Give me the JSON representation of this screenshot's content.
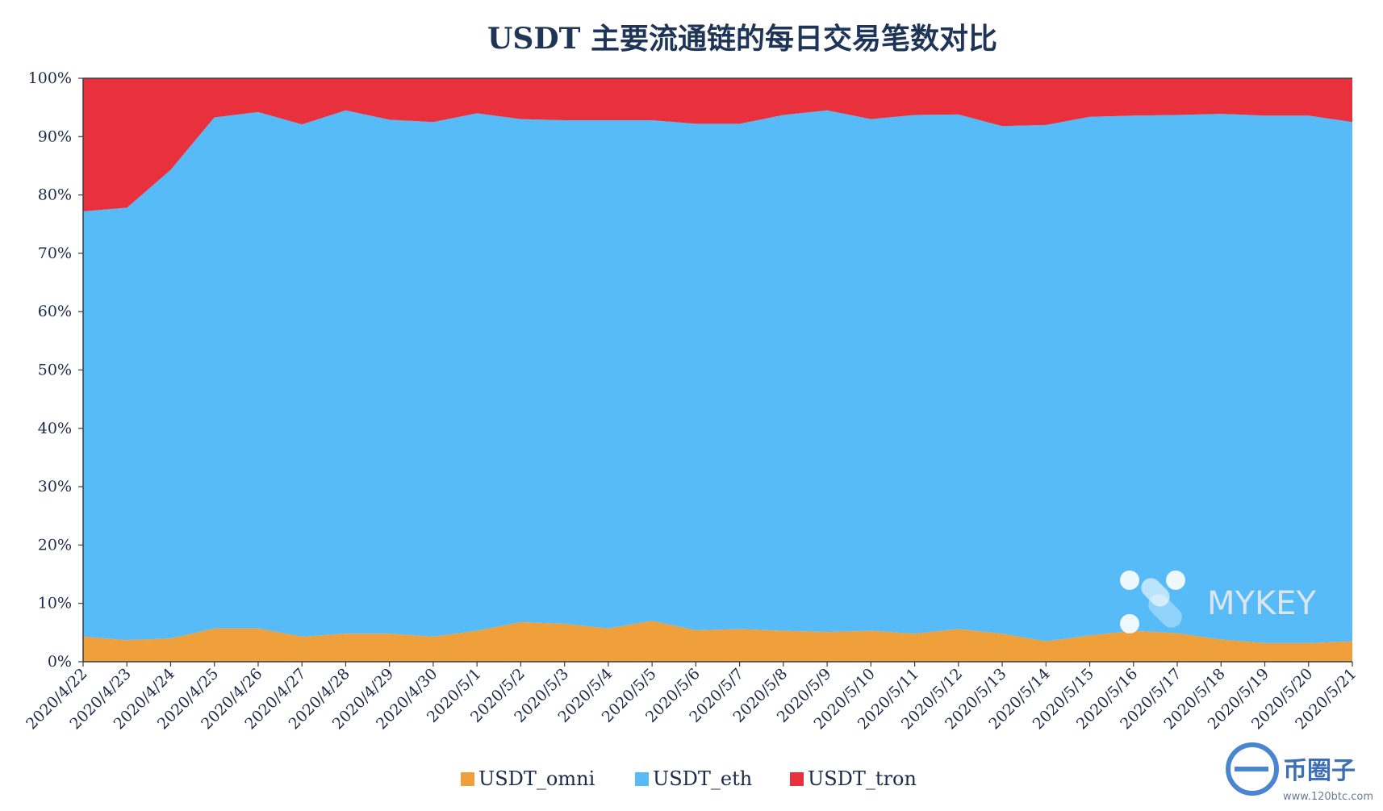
{
  "chart_data": {
    "type": "area",
    "stacked": "percent",
    "title": "USDT 主要流通链的每日交易笔数对比",
    "xlabel": "",
    "ylabel": "",
    "ylim": [
      0,
      100
    ],
    "y_ticks": [
      "0%",
      "10%",
      "20%",
      "30%",
      "40%",
      "50%",
      "60%",
      "70%",
      "80%",
      "90%",
      "100%"
    ],
    "categories": [
      "2020/4/22",
      "2020/4/23",
      "2020/4/24",
      "2020/4/25",
      "2020/4/26",
      "2020/4/27",
      "2020/4/28",
      "2020/4/29",
      "2020/4/30",
      "2020/5/1",
      "2020/5/2",
      "2020/5/3",
      "2020/5/4",
      "2020/5/5",
      "2020/5/6",
      "2020/5/7",
      "2020/5/8",
      "2020/5/9",
      "2020/5/10",
      "2020/5/11",
      "2020/5/12",
      "2020/5/13",
      "2020/5/14",
      "2020/5/15",
      "2020/5/16",
      "2020/5/17",
      "2020/5/18",
      "2020/5/19",
      "2020/5/20",
      "2020/5/21"
    ],
    "series": [
      {
        "name": "USDT_omni",
        "color": "#f0a03a",
        "values": [
          4.3,
          3.7,
          4.0,
          5.7,
          5.7,
          4.3,
          4.8,
          4.8,
          4.3,
          5.3,
          6.8,
          6.5,
          5.7,
          7.0,
          5.4,
          5.6,
          5.3,
          5.1,
          5.3,
          4.8,
          5.6,
          4.8,
          3.5,
          4.5,
          5.3,
          4.9,
          3.8,
          3.2,
          3.2,
          3.5
        ]
      },
      {
        "name": "USDT_eth",
        "color": "#56bbf7",
        "values": [
          72.9,
          74.1,
          80.3,
          87.6,
          88.5,
          87.8,
          89.7,
          88.1,
          88.2,
          88.7,
          86.2,
          86.3,
          87.1,
          85.8,
          86.8,
          86.6,
          88.4,
          89.4,
          87.7,
          88.9,
          88.2,
          87.0,
          88.5,
          88.9,
          88.3,
          88.8,
          90.1,
          90.4,
          90.4,
          89.0
        ]
      },
      {
        "name": "USDT_tron",
        "color": "#e8313c",
        "values": [
          22.8,
          22.2,
          15.7,
          6.7,
          5.8,
          7.9,
          5.5,
          7.1,
          7.5,
          6.0,
          7.0,
          7.2,
          7.2,
          7.2,
          7.8,
          7.8,
          6.3,
          5.5,
          7.0,
          6.3,
          6.2,
          8.2,
          8.0,
          6.6,
          6.4,
          6.3,
          6.1,
          6.4,
          6.4,
          7.5
        ]
      }
    ],
    "legend_position": "bottom",
    "grid": false
  },
  "watermark": {
    "text": "MYKEY"
  },
  "brand": {
    "text": "币圈子",
    "url": "www.120btc.com"
  }
}
